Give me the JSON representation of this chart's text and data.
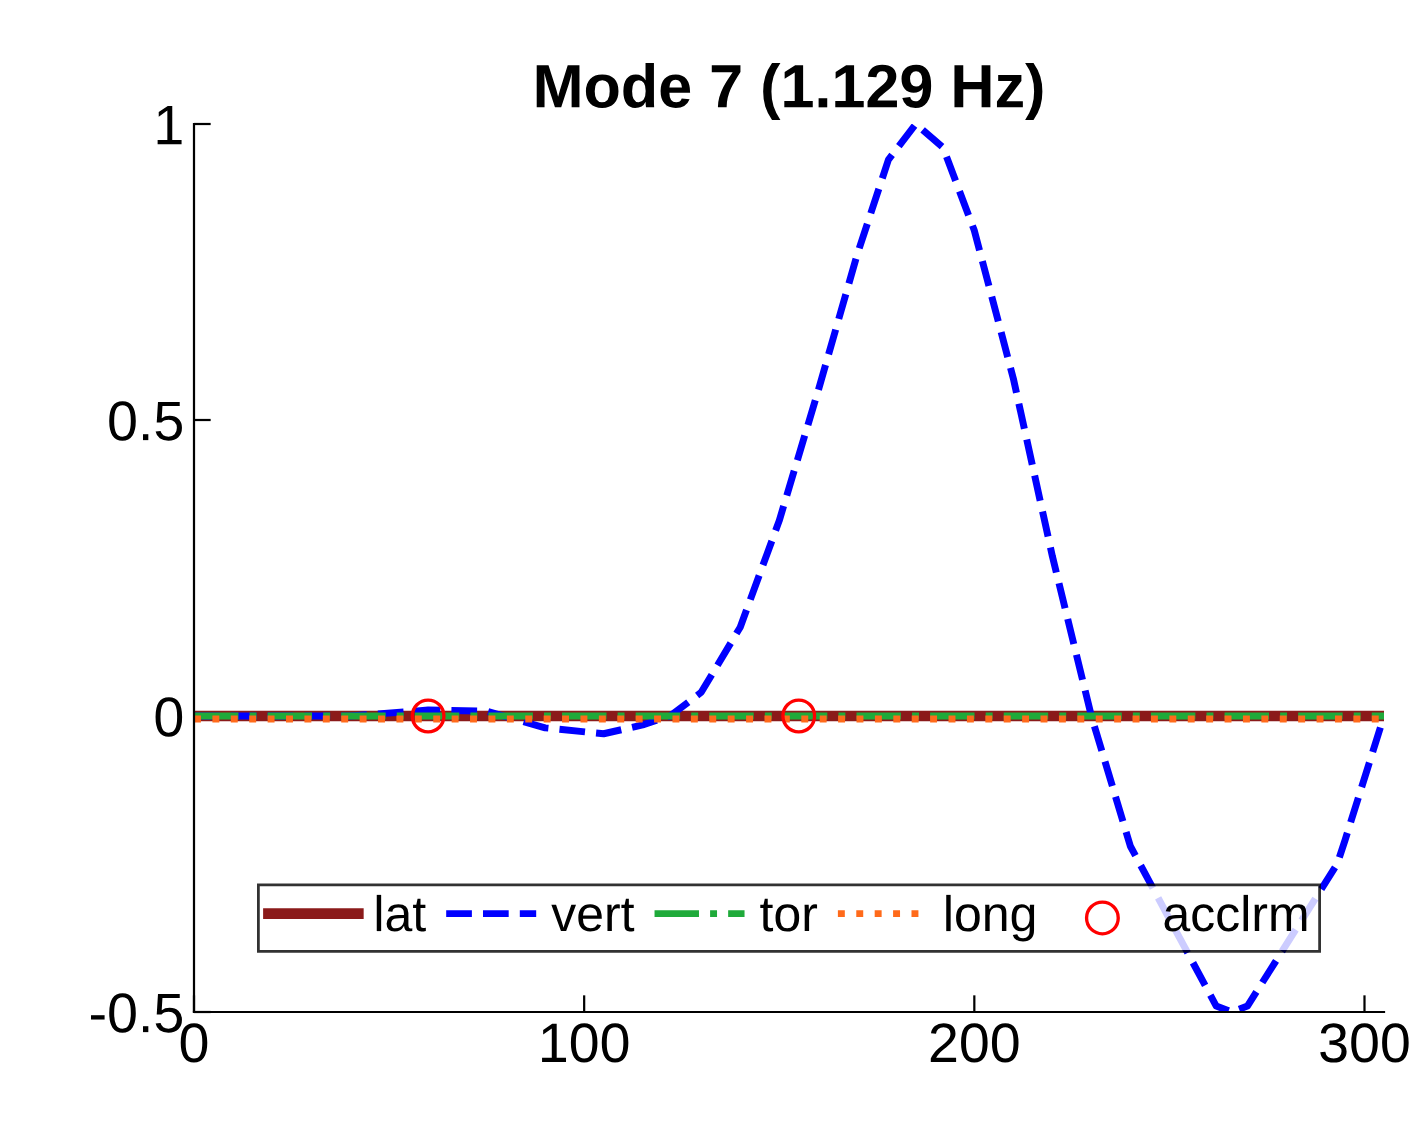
{
  "chart_data": {
    "type": "line",
    "title": "Mode 7 (1.129 Hz)",
    "xlim": [
      0,
      305
    ],
    "ylim": [
      -0.5,
      1
    ],
    "xticks": [
      0,
      100,
      200,
      300
    ],
    "yticks": [
      -0.5,
      0,
      0.5,
      1
    ],
    "grid": false,
    "legend": "bottom",
    "series": [
      {
        "name": "lat",
        "color": "#8b1a1a",
        "line_style": "solid",
        "x": [
          0,
          305
        ],
        "values": [
          0,
          0
        ]
      },
      {
        "name": "vert",
        "color": "#0000ff",
        "line_style": "dashed",
        "x": [
          0,
          40,
          60,
          75,
          90,
          105,
          115,
          122,
          130,
          140,
          150,
          160,
          170,
          178,
          185,
          192,
          200,
          210,
          220,
          230,
          240,
          262,
          266,
          270,
          293,
          295,
          305
        ],
        "values": [
          0,
          0,
          0.01,
          0.008,
          -0.02,
          -0.03,
          -0.015,
          0,
          0.04,
          0.15,
          0.33,
          0.55,
          0.78,
          0.94,
          1.0,
          0.96,
          0.82,
          0.57,
          0.27,
          0,
          -0.22,
          -0.49,
          -0.5,
          -0.49,
          -0.25,
          -0.21,
          0
        ]
      },
      {
        "name": "tor",
        "color": "#1faa3a",
        "line_style": "dashdot",
        "x": [
          0,
          305
        ],
        "values": [
          0,
          0
        ]
      },
      {
        "name": "long",
        "color": "#ff6a1a",
        "line_style": "dotted",
        "x": [
          0,
          305
        ],
        "values": [
          -0.005,
          -0.005
        ]
      },
      {
        "name": "acclrm",
        "type": "scatter",
        "marker": "circle",
        "color": "#ff0000",
        "x": [
          60,
          155
        ],
        "values": [
          0,
          0
        ]
      }
    ]
  }
}
